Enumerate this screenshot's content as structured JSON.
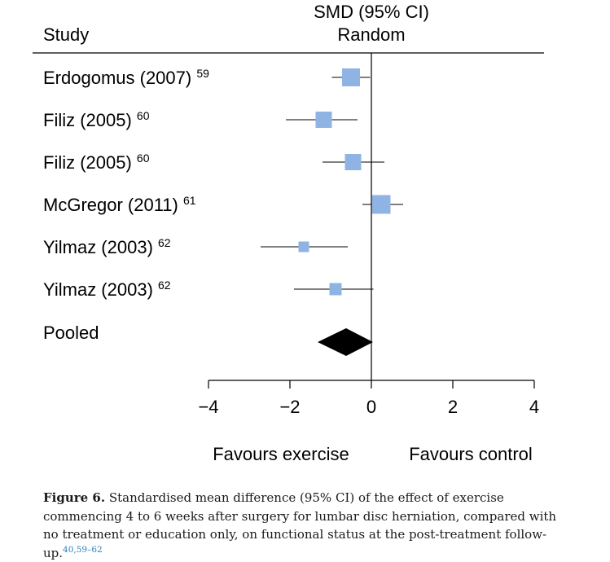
{
  "chart_data": {
    "type": "forest",
    "header": {
      "study_label": "Study",
      "effect_label_line1": "SMD (95% CI)",
      "effect_label_line2": "Random"
    },
    "studies": [
      {
        "label": "Erdogomus (2007)",
        "ref": "59",
        "est": -0.5,
        "lo": -0.97,
        "hi": -0.03
      },
      {
        "label": "Filiz (2005)",
        "ref": "60",
        "est": -1.17,
        "lo": -2.1,
        "hi": -0.34
      },
      {
        "label": "Filiz (2005)",
        "ref": "60",
        "est": -0.45,
        "lo": -1.2,
        "hi": 0.32
      },
      {
        "label": "McGregor (2011)",
        "ref": "61",
        "est": 0.24,
        "lo": -0.22,
        "hi": 0.78
      },
      {
        "label": "Yilmaz (2003)",
        "ref": "62",
        "est": -1.66,
        "lo": -2.72,
        "hi": -0.58
      },
      {
        "label": "Yilmaz (2003)",
        "ref": "62",
        "est": -0.88,
        "lo": -1.9,
        "hi": 0.05
      }
    ],
    "pooled": {
      "label": "Pooled",
      "est": -0.62,
      "lo": -1.18,
      "hi": -0.06
    },
    "x_ticks": [
      -4,
      -2,
      0,
      2,
      4
    ],
    "x_tick_labels": [
      "−4",
      "−2",
      "0",
      "2",
      "4"
    ],
    "xlim": [
      -4,
      4
    ],
    "favours_left": "Favours exercise",
    "favours_right": "Favours control"
  },
  "caption": {
    "label": "Figure 6.",
    "text": "Standardised mean difference (95% CI) of the effect of exercise commencing 4 to 6 weeks after surgery for lumbar disc herniation, compared with no treatment or education only, on functional status at the post-treatment follow-up.",
    "refs": "40,59–62"
  },
  "colors": {
    "marker": "#8fb4e3",
    "pooled": "#000000",
    "line": "#000000"
  }
}
